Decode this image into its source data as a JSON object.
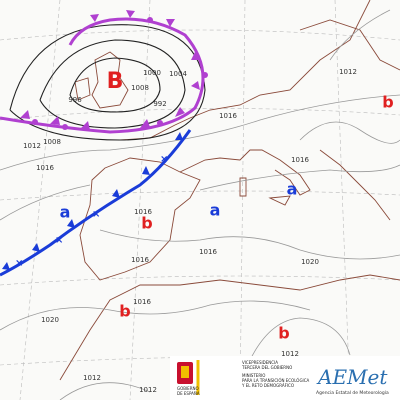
{
  "map": {
    "centers": [
      "B",
      "b",
      "b",
      "b",
      "b",
      "a",
      "a",
      "a"
    ],
    "isobar_labels": [
      "1012",
      "1008",
      "1016",
      "1004",
      "1000",
      "996",
      "992",
      "1008",
      "1012",
      "1016",
      "1016",
      "1016",
      "1016",
      "1020",
      "1020",
      "1012",
      "1012",
      "1012",
      "1016",
      "1016"
    ]
  },
  "footer": {
    "government": [
      "GOBIERNO",
      "DE ESPAÑA"
    ],
    "vicepresidency": [
      "VICEPRESIDENCIA",
      "TERCERA DEL GOBIERNO"
    ],
    "ministry": [
      "MINISTERIO",
      "PARA LA TRANSICIÓN ECOLÓGICA",
      "Y EL RETO DEMOGRÁFICO"
    ],
    "agency_logo": "AEMet",
    "agency_name": "Agencia Estatal de Meteorología"
  }
}
